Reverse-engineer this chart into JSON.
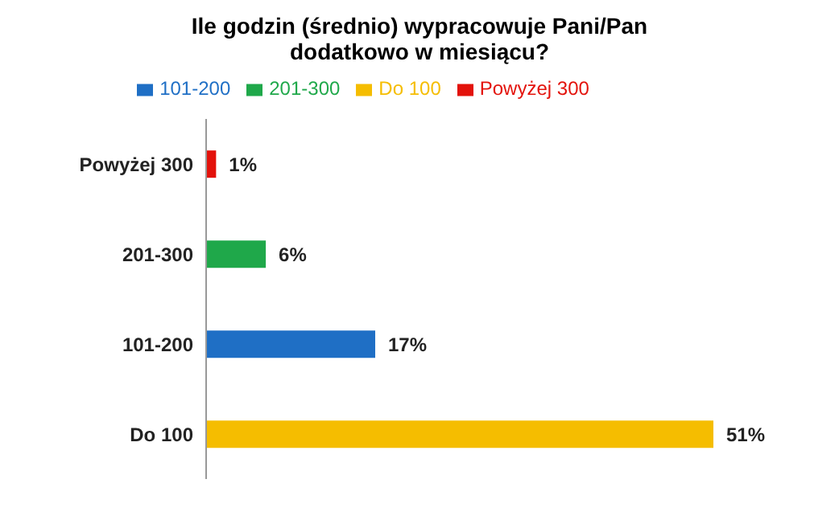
{
  "chart_data": {
    "type": "bar",
    "orientation": "horizontal",
    "stacked": true,
    "title": "Ile godzin (średnio) wypracowuje Pani/Pan dodatkowo w miesiącu?",
    "categories": [
      "Powyżej 300",
      "201-300",
      "101-200",
      "Do 100"
    ],
    "series": [
      {
        "name": "Do 100",
        "color": "#f5bd00",
        "values": [
          null,
          null,
          null,
          51
        ],
        "value_labels": [
          null,
          null,
          null,
          "51%"
        ]
      },
      {
        "name": "101-200",
        "color": "#1f6fc5",
        "values": [
          null,
          null,
          17,
          null
        ],
        "value_labels": [
          null,
          null,
          "17%",
          null
        ]
      },
      {
        "name": "201-300",
        "color": "#1fa84a",
        "values": [
          null,
          6,
          null,
          null
        ],
        "value_labels": [
          null,
          "6%",
          null,
          null
        ]
      },
      {
        "name": "Powyżej 300",
        "color": "#e3120b",
        "values": [
          1,
          null,
          null,
          null
        ],
        "value_labels": [
          "1%",
          null,
          null,
          null
        ]
      }
    ],
    "legend": "top",
    "grid": false
  }
}
